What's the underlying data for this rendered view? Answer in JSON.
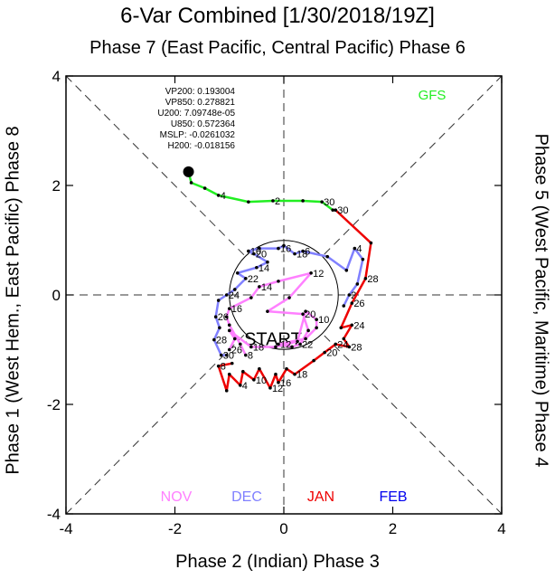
{
  "chart_data": {
    "type": "line",
    "title": "6-Var Combined [1/30/2018/19Z]",
    "top_label": "Phase 7 (East Pacific, Central Pacific) Phase 6",
    "bottom_label": "Phase 2 (Indian) Phase 3",
    "left_label": "Phase 1 (West Hem., East Pacific) Phase 8",
    "right_label": "Phase 5 (West Pacific, Maritime) Phase 4",
    "xlim": [
      -4,
      4
    ],
    "ylim": [
      -4,
      4
    ],
    "x_ticks": [
      "-4",
      "-2",
      "0",
      "2",
      "4"
    ],
    "y_ticks": [
      "-4",
      "-2",
      "0",
      "2",
      "4"
    ],
    "unit_circle_radius": 1,
    "start_label": "START",
    "stats": [
      "VP200: 0.193004",
      "VP850: 0.278821",
      "U200: 7.09748e-05",
      "U850: 0.572364",
      "MSLP: -0.0261032",
      "H200: -0.018156"
    ],
    "legend": [
      {
        "label": "NOV",
        "color": "#ff80ff"
      },
      {
        "label": "DEC",
        "color": "#8080ff"
      },
      {
        "label": "JAN",
        "color": "#ee0000"
      },
      {
        "label": "FEB",
        "color": "#0000ee"
      }
    ],
    "forecast_label": "GFS",
    "forecast_color": "#22ee22",
    "series": [
      {
        "name": "NOV",
        "color": "#ff80ff",
        "points": [
          {
            "x": -0.7,
            "y": -1.1,
            "label": "8"
          },
          {
            "x": -0.8,
            "y": -0.9,
            "label": ""
          },
          {
            "x": -1.0,
            "y": -0.55,
            "label": ""
          },
          {
            "x": -1.05,
            "y": -0.4,
            "label": ""
          },
          {
            "x": -1.0,
            "y": -0.25,
            "label": "16"
          },
          {
            "x": -0.6,
            "y": -0.05,
            "label": ""
          },
          {
            "x": -0.45,
            "y": 0.15,
            "label": "14"
          },
          {
            "x": -0.1,
            "y": 0.25,
            "label": ""
          },
          {
            "x": 0.5,
            "y": 0.4,
            "label": "12"
          },
          {
            "x": 0.1,
            "y": -0.05,
            "label": ""
          },
          {
            "x": -0.3,
            "y": -0.3,
            "label": ""
          },
          {
            "x": 0.35,
            "y": -0.35,
            "label": "20"
          },
          {
            "x": 0.45,
            "y": -0.65,
            "label": ""
          },
          {
            "x": 0.3,
            "y": -0.9,
            "label": "22"
          },
          {
            "x": 0.15,
            "y": -0.95,
            "label": ""
          },
          {
            "x": -0.1,
            "y": -0.9,
            "label": "12"
          },
          {
            "x": 0.4,
            "y": -0.8,
            "label": ""
          },
          {
            "x": 0.6,
            "y": -0.6,
            "label": ""
          },
          {
            "x": 0.6,
            "y": -0.45,
            "label": "10"
          },
          {
            "x": 0.4,
            "y": -0.3,
            "label": ""
          },
          {
            "x": 0.25,
            "y": -0.85,
            "label": ""
          },
          {
            "x": -0.15,
            "y": -0.95,
            "label": ""
          },
          {
            "x": -0.6,
            "y": -0.95,
            "label": "18"
          },
          {
            "x": -1.0,
            "y": -0.65,
            "label": ""
          },
          {
            "x": -0.9,
            "y": -0.8,
            "label": ""
          },
          {
            "x": -1.0,
            "y": -1.0,
            "label": "26"
          }
        ]
      },
      {
        "name": "DEC",
        "color": "#8080ff",
        "points": [
          {
            "x": -1.05,
            "y": -1.1,
            "label": ""
          },
          {
            "x": -1.15,
            "y": -1.1,
            "label": "30"
          },
          {
            "x": -1.28,
            "y": -0.82,
            "label": "28"
          },
          {
            "x": -1.18,
            "y": -0.6,
            "label": ""
          },
          {
            "x": -1.25,
            "y": -0.4,
            "label": "26"
          },
          {
            "x": -1.2,
            "y": -0.1,
            "label": ""
          },
          {
            "x": -1.05,
            "y": 0.0,
            "label": "24"
          },
          {
            "x": -0.9,
            "y": 0.1,
            "label": ""
          },
          {
            "x": -0.7,
            "y": 0.3,
            "label": "22"
          },
          {
            "x": -0.85,
            "y": 0.4,
            "label": ""
          },
          {
            "x": -0.5,
            "y": 0.5,
            "label": "14"
          },
          {
            "x": -0.3,
            "y": 0.6,
            "label": ""
          },
          {
            "x": -0.55,
            "y": 0.75,
            "label": "20"
          },
          {
            "x": -0.65,
            "y": 0.8,
            "label": "10"
          },
          {
            "x": -0.45,
            "y": 0.85,
            "label": ""
          },
          {
            "x": -0.1,
            "y": 0.85,
            "label": "16"
          },
          {
            "x": 0.0,
            "y": 0.9,
            "label": ""
          },
          {
            "x": 0.2,
            "y": 0.75,
            "label": "18"
          },
          {
            "x": 0.35,
            "y": 0.8,
            "label": "6"
          },
          {
            "x": 0.8,
            "y": 0.7,
            "label": ""
          },
          {
            "x": 1.15,
            "y": 0.45,
            "label": ""
          },
          {
            "x": 1.3,
            "y": 0.85,
            "label": "4"
          },
          {
            "x": 1.45,
            "y": 0.65,
            "label": ""
          },
          {
            "x": 1.35,
            "y": 0.2,
            "label": ""
          },
          {
            "x": 1.2,
            "y": 0.0,
            "label": "2"
          },
          {
            "x": 1.1,
            "y": -0.2,
            "label": ""
          }
        ]
      },
      {
        "name": "JAN",
        "color": "#ee0000",
        "points": [
          {
            "x": 0.95,
            "y": 1.55,
            "label": "30"
          },
          {
            "x": 1.6,
            "y": 0.95,
            "label": ""
          },
          {
            "x": 1.5,
            "y": 0.3,
            "label": "28"
          },
          {
            "x": 1.25,
            "y": -0.15,
            "label": "26"
          },
          {
            "x": 1.05,
            "y": -0.6,
            "label": ""
          },
          {
            "x": 1.25,
            "y": -0.55,
            "label": "24"
          },
          {
            "x": 1.1,
            "y": -0.8,
            "label": ""
          },
          {
            "x": 1.2,
            "y": -0.95,
            "label": "28"
          },
          {
            "x": 0.95,
            "y": -0.9,
            "label": "24"
          },
          {
            "x": 0.75,
            "y": -1.05,
            "label": "20"
          },
          {
            "x": 0.55,
            "y": -1.2,
            "label": ""
          },
          {
            "x": 0.2,
            "y": -1.45,
            "label": "18"
          },
          {
            "x": 0.05,
            "y": -1.35,
            "label": ""
          },
          {
            "x": -0.1,
            "y": -1.6,
            "label": "16"
          },
          {
            "x": -0.15,
            "y": -1.45,
            "label": ""
          },
          {
            "x": -0.25,
            "y": -1.7,
            "label": "12"
          },
          {
            "x": -0.45,
            "y": -1.35,
            "label": ""
          },
          {
            "x": -0.55,
            "y": -1.55,
            "label": "10"
          },
          {
            "x": -0.75,
            "y": -1.4,
            "label": ""
          },
          {
            "x": -0.8,
            "y": -1.65,
            "label": "4"
          },
          {
            "x": -1.0,
            "y": -1.45,
            "label": ""
          },
          {
            "x": -1.05,
            "y": -1.75,
            "label": ""
          },
          {
            "x": -1.2,
            "y": -1.3,
            "label": "8"
          },
          {
            "x": -0.95,
            "y": -1.25,
            "label": ""
          }
        ]
      },
      {
        "name": "GFS",
        "color": "#22ee22",
        "points": [
          {
            "x": 0.9,
            "y": 1.55,
            "label": ""
          },
          {
            "x": 0.7,
            "y": 1.7,
            "label": "30"
          },
          {
            "x": 0.35,
            "y": 1.72,
            "label": ""
          },
          {
            "x": -0.2,
            "y": 1.72,
            "label": "2"
          },
          {
            "x": -0.65,
            "y": 1.7,
            "label": ""
          },
          {
            "x": -1.2,
            "y": 1.82,
            "label": "4"
          },
          {
            "x": -1.45,
            "y": 1.95,
            "label": ""
          },
          {
            "x": -1.7,
            "y": 2.05,
            "label": ""
          },
          {
            "x": -1.75,
            "y": 2.25,
            "label": ""
          }
        ]
      }
    ]
  }
}
